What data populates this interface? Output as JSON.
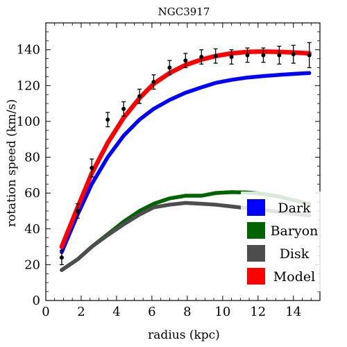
{
  "chart_data": {
    "type": "line",
    "title": "NGC3917",
    "xlabel": "radius (kpc)",
    "ylabel": "rotation speed (km/s)",
    "xlim": [
      0,
      15.5
    ],
    "ylim": [
      0,
      155
    ],
    "xticks": [
      0,
      2,
      4,
      6,
      8,
      10,
      12,
      14
    ],
    "yticks": [
      0,
      20,
      40,
      60,
      80,
      100,
      120,
      140
    ],
    "grid": false,
    "legend_position": "bottom-right",
    "series": [
      {
        "name": "Dark",
        "color": "#0000ff",
        "x": [
          0.9,
          1.8,
          2.6,
          3.5,
          4.4,
          5.3,
          6.1,
          7.0,
          7.9,
          8.8,
          9.6,
          10.5,
          11.4,
          12.3,
          13.2,
          14.0,
          14.9
        ],
        "y": [
          27,
          48,
          65,
          80,
          92,
          101,
          107,
          112,
          116,
          119,
          121.5,
          123.2,
          124.5,
          125.3,
          126,
          126.5,
          127
        ]
      },
      {
        "name": "Baryon",
        "color": "#006400",
        "x": [
          0.9,
          1.8,
          2.6,
          3.5,
          4.4,
          5.3,
          6.1,
          7.0,
          7.9,
          8.8,
          9.6,
          10.5,
          11.4,
          12.3,
          13.2,
          14.0,
          14.9
        ],
        "y": [
          17,
          23,
          30,
          37,
          44,
          50,
          54,
          57,
          58.5,
          58.5,
          60,
          60.5,
          60.3,
          59.5,
          58,
          56,
          54
        ]
      },
      {
        "name": "Disk",
        "color": "#4d4d4d",
        "x": [
          0.9,
          1.8,
          2.6,
          3.5,
          4.4,
          5.3,
          6.1,
          7.0,
          7.9,
          8.8,
          9.6,
          10.5,
          11.4,
          12.3,
          13.2,
          14.0,
          14.9
        ],
        "y": [
          17,
          23,
          30,
          36.5,
          42.5,
          48,
          52,
          53.5,
          54.5,
          54,
          53.5,
          52.5,
          51.5,
          50.5,
          49.5,
          48.5,
          47.5
        ]
      },
      {
        "name": "Model",
        "color": "#ff0000",
        "x": [
          0.9,
          1.8,
          2.6,
          3.5,
          4.4,
          5.3,
          6.1,
          7.0,
          7.9,
          8.8,
          9.6,
          10.5,
          11.4,
          12.3,
          13.2,
          14.0,
          14.9
        ],
        "y": [
          30,
          52,
          71,
          88,
          102,
          113,
          121,
          127,
          131.5,
          134.5,
          136.5,
          138,
          138.8,
          139,
          138.8,
          138.5,
          138
        ]
      }
    ],
    "observations": {
      "x": [
        0.9,
        1.8,
        2.6,
        3.5,
        4.4,
        5.3,
        6.1,
        7.0,
        7.9,
        8.8,
        9.6,
        10.5,
        11.4,
        12.3,
        13.2,
        14.0,
        14.9
      ],
      "y": [
        24,
        50,
        74,
        101,
        107,
        114,
        122,
        130,
        134,
        136,
        136.5,
        136,
        137,
        137,
        137,
        137.5,
        137
      ],
      "err": [
        4,
        4,
        5,
        4,
        4,
        4,
        4,
        4,
        4,
        4,
        4,
        4,
        4,
        4,
        5,
        5,
        7
      ]
    }
  }
}
